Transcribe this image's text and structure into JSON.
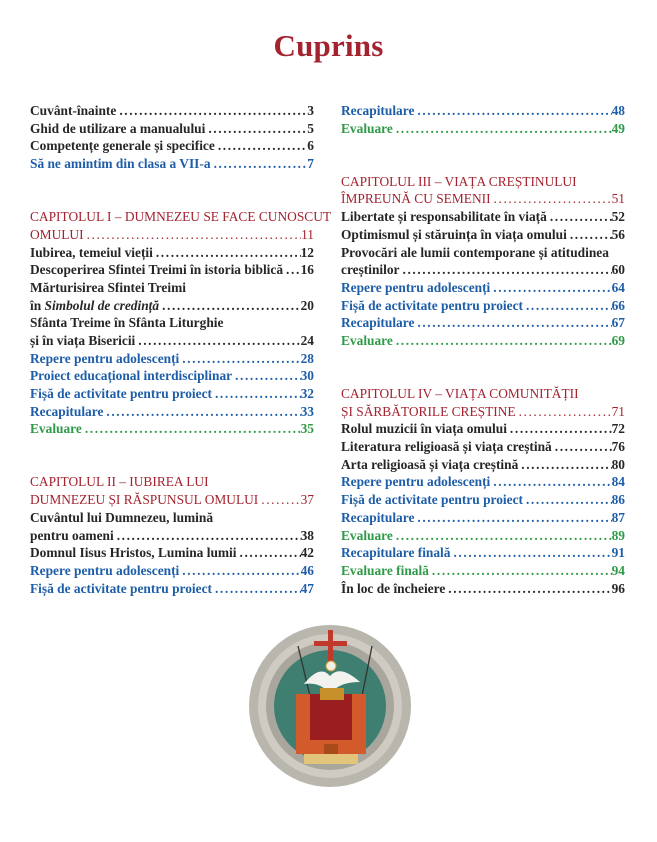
{
  "page_title": "Cuprins",
  "colors": {
    "title": "#a3232f",
    "chapter": "#a3232f",
    "lesson": "#262626",
    "section": "#1e5ea8",
    "evaluation": "#2f9a47"
  },
  "left_column": [
    {
      "style": "black",
      "lines": [
        "Cuvânt-înainte"
      ],
      "page": "3"
    },
    {
      "style": "black",
      "lines": [
        "Ghid de utilizare a manualului"
      ],
      "page": "5"
    },
    {
      "style": "black",
      "lines": [
        "Competențe generale și specifice"
      ],
      "page": "6"
    },
    {
      "style": "blue",
      "lines": [
        "Să ne amintim din clasa a VII-a"
      ],
      "page": "7"
    },
    {
      "spacer": 2
    },
    {
      "style": "red",
      "lines": [
        "CAPITOLUL I – DUMNEZEU SE FACE CUNOSCUT",
        "OMULUI"
      ],
      "page": "11"
    },
    {
      "style": "black",
      "lines": [
        "Iubirea, temeiul vieții"
      ],
      "page": "12"
    },
    {
      "style": "black",
      "lines": [
        "Descoperirea Sfintei Treimi în istoria biblică"
      ],
      "page": "16"
    },
    {
      "style": "black",
      "lines": [
        "Mărturisirea Sfintei Treimi",
        "în "
      ],
      "italic": "Simbolul de credință",
      "page": "20"
    },
    {
      "style": "black",
      "lines": [
        "Sfânta Treime în Sfânta Liturghie",
        "și în viața Bisericii"
      ],
      "page": "24"
    },
    {
      "style": "blue",
      "lines": [
        "Repere pentru adolescenți"
      ],
      "page": "28"
    },
    {
      "style": "blue",
      "lines": [
        "Proiect educațional interdisciplinar"
      ],
      "page": "30"
    },
    {
      "style": "blue",
      "lines": [
        "Fișă de activitate pentru proiect"
      ],
      "page": "32"
    },
    {
      "style": "blue",
      "lines": [
        "Recapitulare"
      ],
      "page": "33"
    },
    {
      "style": "green",
      "lines": [
        "Evaluare"
      ],
      "page": "35"
    },
    {
      "spacer": 2
    },
    {
      "style": "red",
      "lines": [
        "CAPITOLUL II – IUBIREA LUI",
        "DUMNEZEU ȘI RĂSPUNSUL OMULUI"
      ],
      "page": "37"
    },
    {
      "style": "black",
      "lines": [
        "Cuvântul lui Dumnezeu, lumină",
        "pentru oameni"
      ],
      "page": "38"
    },
    {
      "style": "black",
      "lines": [
        "Domnul Iisus Hristos, Lumina lumii"
      ],
      "page": "42"
    },
    {
      "style": "blue",
      "lines": [
        "Repere pentru adolescenți"
      ],
      "page": "46"
    },
    {
      "style": "blue",
      "lines": [
        "Fișă de activitate pentru proiect"
      ],
      "page": "47"
    }
  ],
  "right_column": [
    {
      "style": "blue",
      "lines": [
        "Recapitulare"
      ],
      "page": "48"
    },
    {
      "style": "green",
      "lines": [
        "Evaluare"
      ],
      "page": "49"
    },
    {
      "spacer": 2
    },
    {
      "style": "red",
      "lines": [
        "CAPITOLUL III – VIAȚA CREȘTINULUI",
        "ÎMPREUNĂ CU SEMENII"
      ],
      "page": "51"
    },
    {
      "style": "black",
      "lines": [
        "Libertate și responsabilitate în viață"
      ],
      "page": "52"
    },
    {
      "style": "black",
      "lines": [
        "Optimismul și stăruința în viața omului"
      ],
      "page": "56"
    },
    {
      "style": "black",
      "lines": [
        "Provocări ale lumii contemporane și atitudinea",
        "creștinilor"
      ],
      "page": "60"
    },
    {
      "style": "blue",
      "lines": [
        "Repere pentru adolescenți"
      ],
      "page": "64"
    },
    {
      "style": "blue",
      "lines": [
        "Fișă de activitate pentru proiect"
      ],
      "page": "66"
    },
    {
      "style": "blue",
      "lines": [
        "Recapitulare"
      ],
      "page": "67"
    },
    {
      "style": "green",
      "lines": [
        "Evaluare"
      ],
      "page": "69"
    },
    {
      "spacer": 2
    },
    {
      "style": "red",
      "lines": [
        "CAPITOLUL IV – VIAȚA COMUNITĂȚII",
        "ȘI SĂRBĂTORILE CREȘTINE"
      ],
      "page": "71"
    },
    {
      "style": "black",
      "lines": [
        "Rolul muzicii în viața omului"
      ],
      "page": "72"
    },
    {
      "style": "black",
      "lines": [
        "Literatura religioasă și viața creștină"
      ],
      "page": "76"
    },
    {
      "style": "black",
      "lines": [
        "Arta religioasă și viața creștină"
      ],
      "page": "80"
    },
    {
      "style": "blue",
      "lines": [
        "Repere pentru adolescenți"
      ],
      "page": "84"
    },
    {
      "style": "blue",
      "lines": [
        "Fișă de activitate pentru proiect"
      ],
      "page": "86"
    },
    {
      "style": "blue",
      "lines": [
        "Recapitulare"
      ],
      "page": "87"
    },
    {
      "style": "green",
      "lines": [
        "Evaluare"
      ],
      "page": "89"
    },
    {
      "style": "blue",
      "lines": [
        "Recapitulare finală"
      ],
      "page": "91"
    },
    {
      "style": "green",
      "lines": [
        "Evaluare finală"
      ],
      "page": "94"
    },
    {
      "style": "black",
      "lines": [
        "În loc de încheiere"
      ],
      "page": "96"
    }
  ],
  "illustration": {
    "subject": "icon-medallion-throne-dove"
  }
}
